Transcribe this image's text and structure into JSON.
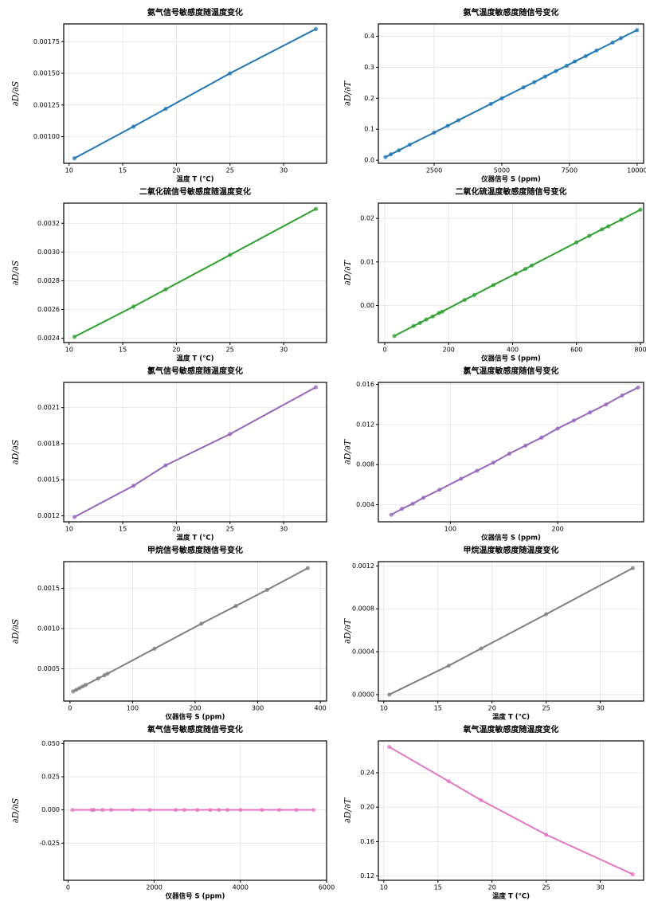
{
  "chart_data": [
    {
      "type": "line",
      "title": "氨气信号敏感度随温度变化",
      "xlabel": "温度 T (°C)",
      "ylabel": "∂D/∂S",
      "color": "#1f77b4",
      "grid": true,
      "x": [
        10.5,
        16,
        19,
        25,
        33
      ],
      "values": [
        0.00083,
        0.00108,
        0.00122,
        0.0015,
        0.00185
      ],
      "xlim": [
        9.5,
        34
      ],
      "xticks": [
        10,
        15,
        20,
        25,
        30
      ],
      "ylim": [
        0.00079,
        0.00189
      ],
      "yticks": [
        {
          "value": 0.001,
          "label": "0.00100"
        },
        {
          "value": 0.00125,
          "label": "0.00125"
        },
        {
          "value": 0.0015,
          "label": "0.00150"
        },
        {
          "value": 0.00175,
          "label": "0.00175"
        }
      ]
    },
    {
      "type": "line",
      "title": "氨气温度敏感度随信号变化",
      "xlabel": "仪器信号 S (ppm)",
      "ylabel": "∂D/∂T",
      "color": "#1f77b4",
      "grid": true,
      "x": [
        700,
        900,
        1200,
        1600,
        2500,
        3000,
        3400,
        4600,
        5000,
        5800,
        6200,
        6600,
        7000,
        7400,
        7700,
        8100,
        8500,
        9100,
        9400,
        10000
      ],
      "values": [
        0.01,
        0.019,
        0.032,
        0.05,
        0.089,
        0.111,
        0.129,
        0.182,
        0.2,
        0.235,
        0.252,
        0.27,
        0.288,
        0.305,
        0.319,
        0.336,
        0.354,
        0.38,
        0.394,
        0.42
      ],
      "xlim": [
        440,
        10240
      ],
      "xticks": [
        2500,
        5000,
        7500,
        10000
      ],
      "ylim": [
        -0.01,
        0.44
      ],
      "yticks": [
        {
          "value": 0,
          "label": "0.0"
        },
        0.1,
        0.2,
        0.3,
        0.4
      ]
    },
    {
      "type": "line",
      "title": "二氧化硫信号敏感度随温度变化",
      "xlabel": "温度 T (°C)",
      "ylabel": "∂D/∂S",
      "color": "#2ca02c",
      "grid": true,
      "x": [
        10.5,
        16,
        19,
        25,
        33
      ],
      "values": [
        0.00241,
        0.00262,
        0.00274,
        0.00298,
        0.0033
      ],
      "xlim": [
        9.5,
        34
      ],
      "xticks": [
        10,
        15,
        20,
        25,
        30
      ],
      "ylim": [
        0.00237,
        0.00334
      ],
      "yticks": [
        0.0024,
        0.0026,
        {
          "value": 0.0028,
          "label": "0.0028"
        },
        {
          "value": 0.003,
          "label": "0.0030"
        },
        0.0032
      ]
    },
    {
      "type": "line",
      "title": "二氧化硫温度敏感度随信号变化",
      "xlabel": "仪器信号 S (ppm)",
      "ylabel": "∂D/∂T",
      "color": "#2ca02c",
      "grid": true,
      "x": [
        30,
        90,
        110,
        130,
        150,
        170,
        180,
        250,
        280,
        340,
        410,
        440,
        460,
        600,
        640,
        680,
        700,
        740,
        800
      ],
      "values": [
        -0.007,
        -0.0047,
        -0.004,
        -0.0032,
        -0.0025,
        -0.0017,
        -0.0014,
        0.0013,
        0.0024,
        0.0047,
        0.0073,
        0.0084,
        0.0092,
        0.0145,
        0.016,
        0.0175,
        0.0182,
        0.0197,
        0.022
      ],
      "xlim": [
        -20,
        810
      ],
      "xticks": [
        0,
        200,
        400,
        600,
        800
      ],
      "ylim": [
        -0.0085,
        0.0235
      ],
      "yticks": [
        {
          "value": 0,
          "label": "0.00"
        },
        0.01,
        0.02
      ]
    },
    {
      "type": "line",
      "title": "氯气信号敏感度随温度变化",
      "xlabel": "温度 T (°C)",
      "ylabel": "∂D/∂S",
      "color": "#9467bd",
      "grid": true,
      "x": [
        10.5,
        16,
        19,
        25,
        33
      ],
      "values": [
        0.00119,
        0.00145,
        0.00162,
        0.00188,
        0.00227
      ],
      "xlim": [
        9.5,
        34
      ],
      "xticks": [
        10,
        15,
        20,
        25,
        30
      ],
      "ylim": [
        0.00115,
        0.00231
      ],
      "yticks": [
        0.0012,
        0.0015,
        0.0018,
        0.0021
      ]
    },
    {
      "type": "line",
      "title": "氯气温度敏感度随信号变化",
      "xlabel": "仪器信号 S (ppm)",
      "ylabel": "∂D/∂T",
      "color": "#9467bd",
      "grid": true,
      "x": [
        45,
        55,
        65,
        75,
        90,
        110,
        125,
        140,
        155,
        170,
        185,
        200,
        215,
        230,
        245,
        260,
        275
      ],
      "values": [
        0.003,
        0.0036,
        0.0041,
        0.0047,
        0.0055,
        0.0066,
        0.0074,
        0.0082,
        0.0091,
        0.0099,
        0.0107,
        0.0116,
        0.0124,
        0.0132,
        0.014,
        0.0149,
        0.0157
      ],
      "xlim": [
        33,
        280
      ],
      "xticks": [
        100,
        200
      ],
      "ylim": [
        0.0023,
        0.0162
      ],
      "yticks": [
        0.004,
        0.008,
        0.012,
        0.016
      ]
    },
    {
      "type": "line",
      "title": "甲烷信号敏感度随信号变化",
      "xlabel": "仪器信号 S (ppm)",
      "ylabel": "∂D/∂S",
      "color": "#7f7f7f",
      "grid": true,
      "x": [
        5,
        10,
        15,
        20,
        25,
        45,
        55,
        60,
        135,
        210,
        265,
        315,
        380
      ],
      "values": [
        0.00022,
        0.00024,
        0.00026,
        0.00028,
        0.0003,
        0.00038,
        0.00042,
        0.00044,
        0.00075,
        0.00106,
        0.00128,
        0.00148,
        0.00175
      ],
      "xlim": [
        -10,
        410
      ],
      "xticks": [
        0,
        100,
        200,
        300,
        400
      ],
      "ylim": [
        0.0001,
        0.00183
      ],
      "yticks": [
        0.0005,
        {
          "value": 0.001,
          "label": "0.0010"
        },
        0.0015
      ]
    },
    {
      "type": "line",
      "title": "甲烷温度敏感度随温度变化",
      "xlabel": "温度 T (°C)",
      "ylabel": "∂D/∂T",
      "color": "#7f7f7f",
      "grid": true,
      "x": [
        10.5,
        16,
        19,
        25,
        33
      ],
      "values": [
        0.0,
        0.00027,
        0.00043,
        0.00075,
        0.00118
      ],
      "xlim": [
        9.5,
        34
      ],
      "xticks": [
        10,
        15,
        20,
        25,
        30
      ],
      "ylim": [
        -6e-05,
        0.00124
      ],
      "yticks": [
        {
          "value": 0,
          "label": "0.0000"
        },
        0.0004,
        0.0008,
        0.0012
      ]
    },
    {
      "type": "line",
      "title": "氧气信号敏感度随信号变化",
      "xlabel": "仪器信号 S (ppm)",
      "ylabel": "∂D/∂S",
      "color": "#e377c2",
      "grid": true,
      "x": [
        100,
        550,
        600,
        800,
        1000,
        1500,
        1900,
        2500,
        2700,
        3000,
        3300,
        3500,
        3700,
        4000,
        4500,
        4900,
        5300,
        5700
      ],
      "values": [
        0,
        0,
        0,
        0,
        0,
        0,
        0,
        0,
        0,
        0,
        0,
        0,
        0,
        0,
        0,
        0,
        0,
        0
      ],
      "xlim": [
        -100,
        6000
      ],
      "xticks": [
        0,
        2000,
        4000,
        6000
      ],
      "ylim": [
        -0.053,
        0.052
      ],
      "yticks": [
        -0.025,
        {
          "value": 0,
          "label": "0.000"
        },
        0.025,
        {
          "value": 0.05,
          "label": "0.050"
        }
      ]
    },
    {
      "type": "line",
      "title": "氧气温度敏感度随温度变化",
      "xlabel": "温度 T (°C)",
      "ylabel": "∂D/∂T",
      "color": "#e377c2",
      "grid": true,
      "x": [
        10.5,
        16,
        19,
        25,
        33
      ],
      "values": [
        0.27,
        0.23,
        0.208,
        0.168,
        0.122
      ],
      "xlim": [
        9.5,
        34
      ],
      "xticks": [
        10,
        15,
        20,
        25,
        30
      ],
      "ylim": [
        0.115,
        0.277
      ],
      "yticks": [
        0.12,
        0.16,
        {
          "value": 0.2,
          "label": "0.20"
        },
        0.24
      ]
    }
  ]
}
